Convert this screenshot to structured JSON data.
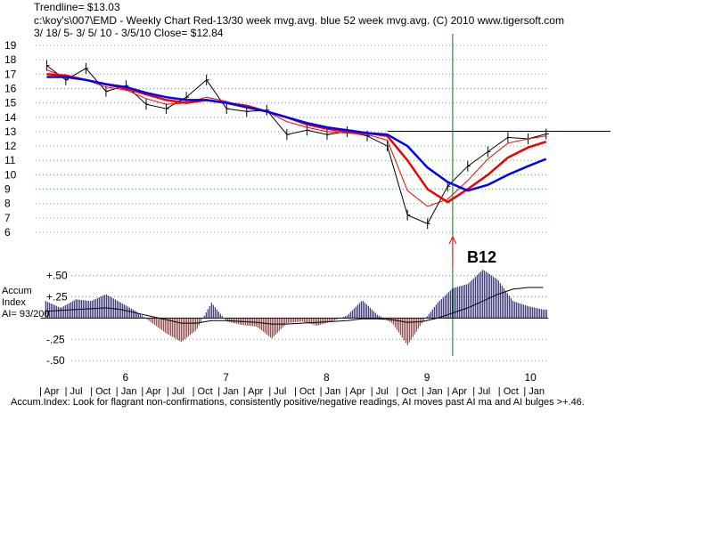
{
  "header": {
    "trendline": "Trendline= $13.03",
    "title": "c:\\koy's\\007\\EMD  - Weekly Chart  Red-13/30 week mvg.avg.  blue 52 week mvg.avg.  (C) 2010 www.tigersoft.com",
    "range": " 3/ 18/ 5- 3/ 5/ 10 - 3/5/10   Close= $12.84"
  },
  "signal_label": "B12",
  "accum_label": {
    "line1": "Accum",
    "line2": "Index",
    "line3": "AI= 93/200"
  },
  "footer": "Accum.Index: Look for flagrant non-confirmations, consistently positive/negative readings, AI moves past AI ma and AI bulges >+.46.",
  "chart_data": [
    {
      "type": "line",
      "title": "EMD Weekly Chart",
      "ylim": [
        6,
        19
      ],
      "y_ticks": [
        "19",
        "18",
        "17",
        "16",
        "15",
        "14",
        "13",
        "12",
        "11",
        "10",
        "9",
        "8",
        "7",
        "6"
      ],
      "x_year_labels": [
        "6",
        "7",
        "8",
        "9",
        "10"
      ],
      "x_month_labels": [
        "| Apr",
        "| Jul",
        "| Oct",
        "| Jan",
        "| Apr",
        "| Jul",
        "| Oct",
        "| Jan",
        "| Apr",
        "| Jul",
        "| Oct",
        "| Jan",
        "| Apr",
        "| Jul",
        "| Oct",
        "| Jan",
        "| Apr",
        "| Jul",
        "| Oct",
        "| Jan"
      ],
      "x": [
        2005.21,
        2005.4,
        2005.6,
        2005.8,
        2006.0,
        2006.2,
        2006.4,
        2006.6,
        2006.8,
        2007.0,
        2007.2,
        2007.4,
        2007.6,
        2007.8,
        2008.0,
        2008.2,
        2008.4,
        2008.6,
        2008.8,
        2009.0,
        2009.2,
        2009.4,
        2009.6,
        2009.8,
        2010.0,
        2010.18
      ],
      "series": [
        {
          "name": "price",
          "color": "#000000",
          "values": [
            17.6,
            16.6,
            17.4,
            15.8,
            16.2,
            14.9,
            14.6,
            15.4,
            16.6,
            14.6,
            14.4,
            14.5,
            12.8,
            13.1,
            12.8,
            13.0,
            12.7,
            12.0,
            7.2,
            6.6,
            9.2,
            10.6,
            11.6,
            12.6,
            12.5,
            12.84
          ]
        },
        {
          "name": "13-week mvg.avg.",
          "color": "#ff0000",
          "values": [
            17.3,
            16.8,
            16.6,
            16.1,
            15.9,
            15.3,
            14.9,
            15.0,
            15.4,
            15.1,
            14.7,
            14.4,
            13.7,
            13.3,
            13.0,
            12.9,
            12.8,
            12.4,
            8.9,
            7.8,
            8.3,
            9.6,
            11.1,
            12.2,
            12.5,
            12.7
          ]
        },
        {
          "name": "30-week mvg.avg.",
          "color": "#ee0000",
          "values": [
            17.0,
            16.9,
            16.6,
            16.3,
            16.0,
            15.6,
            15.2,
            15.0,
            15.2,
            15.0,
            14.8,
            14.4,
            14.0,
            13.5,
            13.2,
            13.0,
            12.9,
            12.7,
            11.0,
            9.0,
            8.1,
            9.0,
            10.0,
            11.2,
            11.9,
            12.3
          ]
        },
        {
          "name": "52-week mvg.avg.",
          "color": "#0000ff",
          "values": [
            16.8,
            16.8,
            16.6,
            16.3,
            16.1,
            15.7,
            15.4,
            15.2,
            15.2,
            15.0,
            14.7,
            14.4,
            14.0,
            13.6,
            13.3,
            13.1,
            12.9,
            12.8,
            12.0,
            10.5,
            9.5,
            8.9,
            9.3,
            10.0,
            10.6,
            11.1
          ]
        }
      ],
      "trendline": {
        "value": 13.03,
        "color": "#000000"
      },
      "signal": {
        "label": "B12",
        "x": 2009.25,
        "color": "#008000",
        "arrow_color": "#ff0000"
      }
    },
    {
      "type": "bar",
      "title": "Accum Index",
      "ylim": [
        -0.55,
        0.6
      ],
      "y_ticks": [
        "+.50",
        "+.25",
        "-.25",
        "-.50"
      ],
      "y_tick_values": [
        0.5,
        0.25,
        -0.25,
        -0.5
      ],
      "x": [
        2005.2,
        2005.35,
        2005.5,
        2005.65,
        2005.8,
        2005.95,
        2006.1,
        2006.25,
        2006.4,
        2006.55,
        2006.7,
        2006.85,
        2007.0,
        2007.15,
        2007.3,
        2007.45,
        2007.6,
        2007.75,
        2007.9,
        2008.05,
        2008.2,
        2008.35,
        2008.5,
        2008.65,
        2008.8,
        2008.95,
        2009.1,
        2009.25,
        2009.4,
        2009.55,
        2009.7,
        2009.85,
        2010.0,
        2010.15
      ],
      "values": [
        0.2,
        0.12,
        0.22,
        0.2,
        0.28,
        0.18,
        0.08,
        -0.05,
        -0.18,
        -0.28,
        -0.14,
        0.18,
        -0.04,
        -0.08,
        -0.1,
        -0.24,
        -0.06,
        -0.04,
        -0.09,
        -0.04,
        0.03,
        0.21,
        0.04,
        -0.06,
        -0.32,
        -0.05,
        0.18,
        0.35,
        0.4,
        0.57,
        0.45,
        0.2,
        0.14,
        0.1
      ],
      "positive_color": "#0000b0",
      "negative_color": "#c00000",
      "ma_series": {
        "name": "AI ma",
        "color": "#000000",
        "values": [
          0.08,
          0.09,
          0.1,
          0.11,
          0.12,
          0.1,
          0.06,
          0.02,
          -0.02,
          -0.06,
          -0.06,
          -0.03,
          -0.03,
          -0.04,
          -0.05,
          -0.07,
          -0.07,
          -0.06,
          -0.05,
          -0.04,
          -0.03,
          -0.01,
          -0.01,
          -0.02,
          -0.05,
          -0.04,
          0.0,
          0.06,
          0.12,
          0.2,
          0.28,
          0.34,
          0.36,
          0.36
        ]
      }
    }
  ]
}
